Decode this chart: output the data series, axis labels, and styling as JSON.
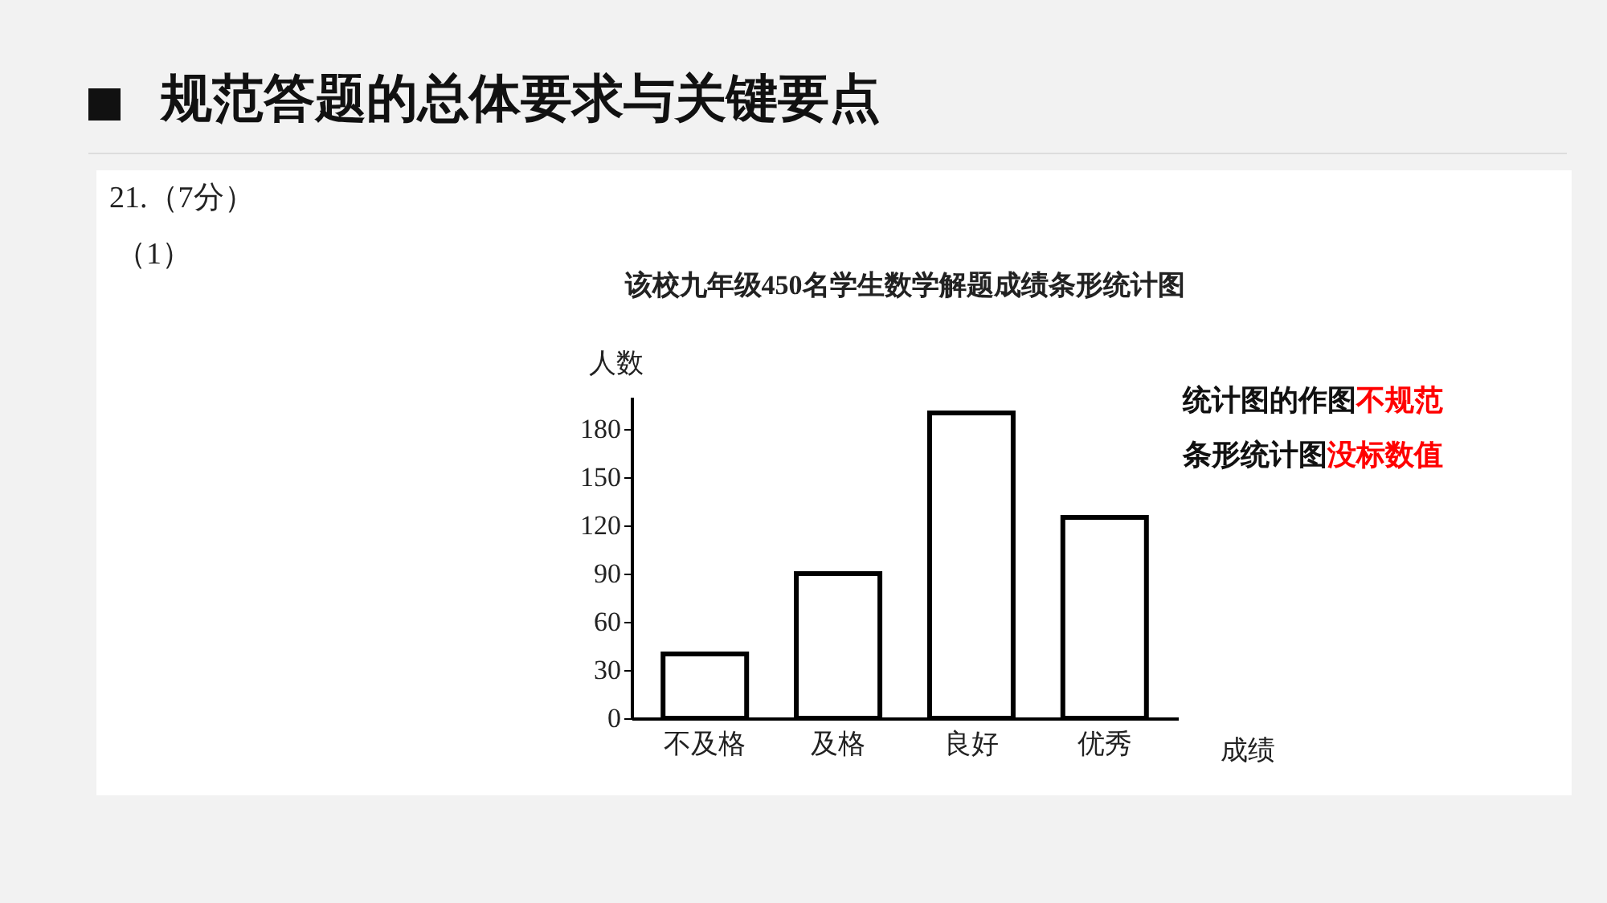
{
  "chart_data": {
    "type": "bar",
    "title": "规范答题的总体要求与关键要点",
    "subtitle": "该校九年级450名学生数学解题成绩条形统计图",
    "xlabel": "成绩",
    "ylabel": "人数",
    "categories": [
      "不及格",
      "及格",
      "良好",
      "优秀"
    ],
    "values": [
      40,
      90,
      190,
      125
    ],
    "color": "#000000",
    "ylim": [
      0,
      200
    ],
    "yticks": [
      0,
      30,
      60,
      90,
      120,
      150,
      180
    ],
    "grid": false,
    "annotations": [
      "21.（7分）",
      "（1）",
      "统计图的作图",
      "不规范",
      "条形统计图",
      "没标数值"
    ]
  }
}
